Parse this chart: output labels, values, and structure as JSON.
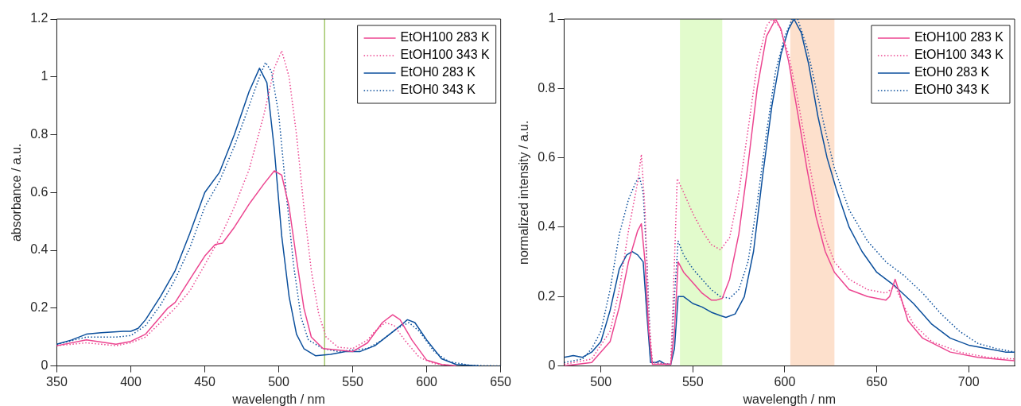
{
  "chart_data": [
    {
      "type": "line",
      "xlabel": "wavelength / nm",
      "ylabel": "absorbance / a.u.",
      "xlim": [
        350,
        650
      ],
      "ylim": [
        0,
        1.2
      ],
      "xticks": [
        350,
        400,
        450,
        500,
        550,
        600,
        650
      ],
      "yticks": [
        0,
        0.2,
        0.4,
        0.6,
        0.8,
        1,
        1.2
      ],
      "grid": false,
      "legend": "top right",
      "ref_lines": [
        {
          "axis": "x",
          "value": 531,
          "label": null,
          "color": "#a3c76b"
        }
      ],
      "series": [
        {
          "name": "EtOH100 283 K",
          "color": "#ec4590",
          "line_style": "solid",
          "x": [
            350,
            370,
            390,
            400,
            410,
            420,
            425,
            430,
            440,
            450,
            457,
            462,
            470,
            480,
            490,
            497,
            502,
            507,
            512,
            517,
            522,
            530,
            540,
            550,
            560,
            570,
            577,
            582,
            590,
            600,
            610,
            620
          ],
          "values": [
            0.07,
            0.09,
            0.075,
            0.085,
            0.11,
            0.17,
            0.2,
            0.22,
            0.3,
            0.38,
            0.42,
            0.425,
            0.48,
            0.56,
            0.63,
            0.675,
            0.66,
            0.55,
            0.37,
            0.2,
            0.1,
            0.06,
            0.055,
            0.05,
            0.08,
            0.15,
            0.177,
            0.16,
            0.09,
            0.02,
            0.005,
            0
          ]
        },
        {
          "name": "EtOH100 343 K",
          "color": "#ec4590",
          "line_style": "dotted",
          "x": [
            350,
            370,
            390,
            400,
            410,
            420,
            430,
            440,
            450,
            460,
            470,
            480,
            490,
            497,
            502,
            507,
            512,
            517,
            522,
            527,
            532,
            540,
            550,
            560,
            565,
            572,
            578,
            585,
            595,
            605,
            620
          ],
          "values": [
            0.07,
            0.08,
            0.07,
            0.08,
            0.1,
            0.15,
            0.2,
            0.26,
            0.35,
            0.44,
            0.55,
            0.68,
            0.87,
            1.03,
            1.09,
            1.0,
            0.8,
            0.55,
            0.33,
            0.18,
            0.1,
            0.065,
            0.06,
            0.09,
            0.12,
            0.15,
            0.14,
            0.09,
            0.03,
            0.008,
            0
          ]
        },
        {
          "name": "EtOH0 283 K",
          "color": "#0b4f9c",
          "line_style": "solid",
          "x": [
            350,
            360,
            370,
            380,
            395,
            400,
            405,
            410,
            420,
            430,
            440,
            450,
            460,
            470,
            480,
            487,
            492,
            497,
            502,
            507,
            512,
            517,
            525,
            535,
            545,
            555,
            565,
            575,
            580,
            587,
            592,
            600,
            610,
            620,
            635
          ],
          "values": [
            0.075,
            0.09,
            0.11,
            0.115,
            0.12,
            0.12,
            0.13,
            0.16,
            0.24,
            0.33,
            0.46,
            0.6,
            0.67,
            0.8,
            0.95,
            1.03,
            0.98,
            0.75,
            0.45,
            0.24,
            0.11,
            0.06,
            0.035,
            0.04,
            0.05,
            0.05,
            0.07,
            0.11,
            0.13,
            0.16,
            0.15,
            0.09,
            0.025,
            0.005,
            0
          ]
        },
        {
          "name": "EtOH0 343 K",
          "color": "#0b4f9c",
          "line_style": "dotted",
          "x": [
            350,
            370,
            390,
            400,
            410,
            420,
            430,
            440,
            450,
            460,
            470,
            480,
            487,
            491,
            495,
            500,
            505,
            510,
            515,
            520,
            530,
            540,
            550,
            560,
            570,
            580,
            588,
            595,
            605,
            615,
            630,
            650
          ],
          "values": [
            0.075,
            0.1,
            0.1,
            0.105,
            0.14,
            0.21,
            0.3,
            0.41,
            0.55,
            0.64,
            0.76,
            0.9,
            1.0,
            1.05,
            1.02,
            0.87,
            0.6,
            0.35,
            0.17,
            0.09,
            0.06,
            0.05,
            0.055,
            0.06,
            0.09,
            0.13,
            0.15,
            0.12,
            0.05,
            0.015,
            0.002,
            0
          ]
        }
      ]
    },
    {
      "type": "line",
      "xlabel": "wavelength / nm",
      "ylabel": "normalized intensity / a.u.",
      "xlim": [
        480,
        725
      ],
      "ylim": [
        0,
        1
      ],
      "xticks": [
        500,
        550,
        600,
        650,
        700
      ],
      "yticks": [
        0,
        0.2,
        0.4,
        0.6,
        0.8,
        1
      ],
      "grid": false,
      "legend": "top right",
      "bands": [
        {
          "axis": "x",
          "from": 543,
          "to": 566,
          "label": null,
          "color": "#e2fbcc"
        },
        {
          "axis": "x",
          "from": 603,
          "to": 627,
          "label": null,
          "color": "#fde0cc"
        }
      ],
      "series": [
        {
          "name": "EtOH100 283 K",
          "color": "#ec4590",
          "line_style": "solid",
          "x": [
            480,
            495,
            505,
            510,
            515,
            520,
            522,
            524,
            526,
            528,
            538,
            540,
            542,
            545,
            550,
            555,
            560,
            563,
            566,
            570,
            575,
            580,
            585,
            590,
            595,
            598,
            602,
            607,
            612,
            617,
            622,
            627,
            635,
            645,
            655,
            657,
            660,
            663,
            667,
            675,
            690,
            705,
            725
          ],
          "values": [
            0,
            0.01,
            0.07,
            0.17,
            0.3,
            0.39,
            0.41,
            0.3,
            0.1,
            0.005,
            0.005,
            0.1,
            0.3,
            0.27,
            0.24,
            0.21,
            0.19,
            0.19,
            0.195,
            0.25,
            0.38,
            0.58,
            0.8,
            0.95,
            1.0,
            0.97,
            0.88,
            0.73,
            0.57,
            0.43,
            0.33,
            0.27,
            0.22,
            0.2,
            0.19,
            0.2,
            0.25,
            0.2,
            0.13,
            0.08,
            0.04,
            0.025,
            0.015
          ]
        },
        {
          "name": "EtOH100 343 K",
          "color": "#ec4590",
          "line_style": "dotted",
          "x": [
            480,
            495,
            505,
            510,
            515,
            520,
            522,
            524,
            526,
            528,
            538,
            540,
            541.5,
            545,
            550,
            555,
            560,
            565,
            570,
            575,
            580,
            585,
            590,
            593,
            597,
            602,
            607,
            612,
            617,
            622,
            627,
            635,
            645,
            655,
            660,
            665,
            670,
            680,
            695,
            710,
            725
          ],
          "values": [
            0.005,
            0.02,
            0.1,
            0.22,
            0.39,
            0.53,
            0.61,
            0.45,
            0.15,
            0.01,
            0.005,
            0.3,
            0.54,
            0.5,
            0.44,
            0.39,
            0.35,
            0.335,
            0.37,
            0.5,
            0.68,
            0.87,
            0.98,
            1.0,
            0.98,
            0.9,
            0.77,
            0.62,
            0.48,
            0.37,
            0.3,
            0.25,
            0.22,
            0.21,
            0.23,
            0.17,
            0.12,
            0.07,
            0.04,
            0.025,
            0.02
          ]
        },
        {
          "name": "EtOH0 283 K",
          "color": "#0b4f9c",
          "line_style": "solid",
          "x": [
            480,
            485,
            490,
            495,
            500,
            505,
            510,
            514,
            517,
            520,
            523,
            525,
            527,
            530,
            532,
            535,
            538,
            540,
            542,
            545,
            550,
            555,
            560,
            565,
            568,
            573,
            578,
            583,
            588,
            593,
            598,
            602,
            605,
            609,
            613,
            618,
            623,
            628,
            635,
            642,
            650,
            660,
            670,
            680,
            690,
            700,
            710,
            720,
            725
          ],
          "values": [
            0.025,
            0.03,
            0.025,
            0.04,
            0.07,
            0.16,
            0.28,
            0.32,
            0.33,
            0.32,
            0.3,
            0.15,
            0.01,
            0.01,
            0.015,
            0.005,
            0.005,
            0.05,
            0.2,
            0.2,
            0.18,
            0.17,
            0.155,
            0.145,
            0.14,
            0.15,
            0.2,
            0.33,
            0.55,
            0.75,
            0.9,
            0.97,
            1.0,
            0.96,
            0.87,
            0.72,
            0.6,
            0.51,
            0.4,
            0.33,
            0.27,
            0.23,
            0.18,
            0.12,
            0.08,
            0.06,
            0.05,
            0.04,
            0.04
          ]
        },
        {
          "name": "EtOH0 343 K",
          "color": "#0b4f9c",
          "line_style": "dotted",
          "x": [
            480,
            490,
            495,
            500,
            505,
            510,
            515,
            519,
            521,
            523,
            525,
            527,
            528,
            538,
            540,
            542,
            545,
            550,
            555,
            560,
            565,
            570,
            575,
            580,
            585,
            590,
            595,
            600,
            604,
            607,
            612,
            617,
            622,
            627,
            635,
            645,
            655,
            665,
            675,
            685,
            695,
            705,
            715,
            725
          ],
          "values": [
            0.01,
            0.02,
            0.05,
            0.1,
            0.22,
            0.38,
            0.48,
            0.53,
            0.545,
            0.5,
            0.3,
            0.05,
            0.01,
            0.005,
            0.2,
            0.36,
            0.32,
            0.28,
            0.25,
            0.22,
            0.2,
            0.195,
            0.22,
            0.3,
            0.47,
            0.67,
            0.85,
            0.95,
            1.0,
            1.0,
            0.92,
            0.8,
            0.68,
            0.57,
            0.45,
            0.36,
            0.3,
            0.26,
            0.21,
            0.15,
            0.1,
            0.065,
            0.05,
            0.04
          ]
        }
      ]
    }
  ]
}
